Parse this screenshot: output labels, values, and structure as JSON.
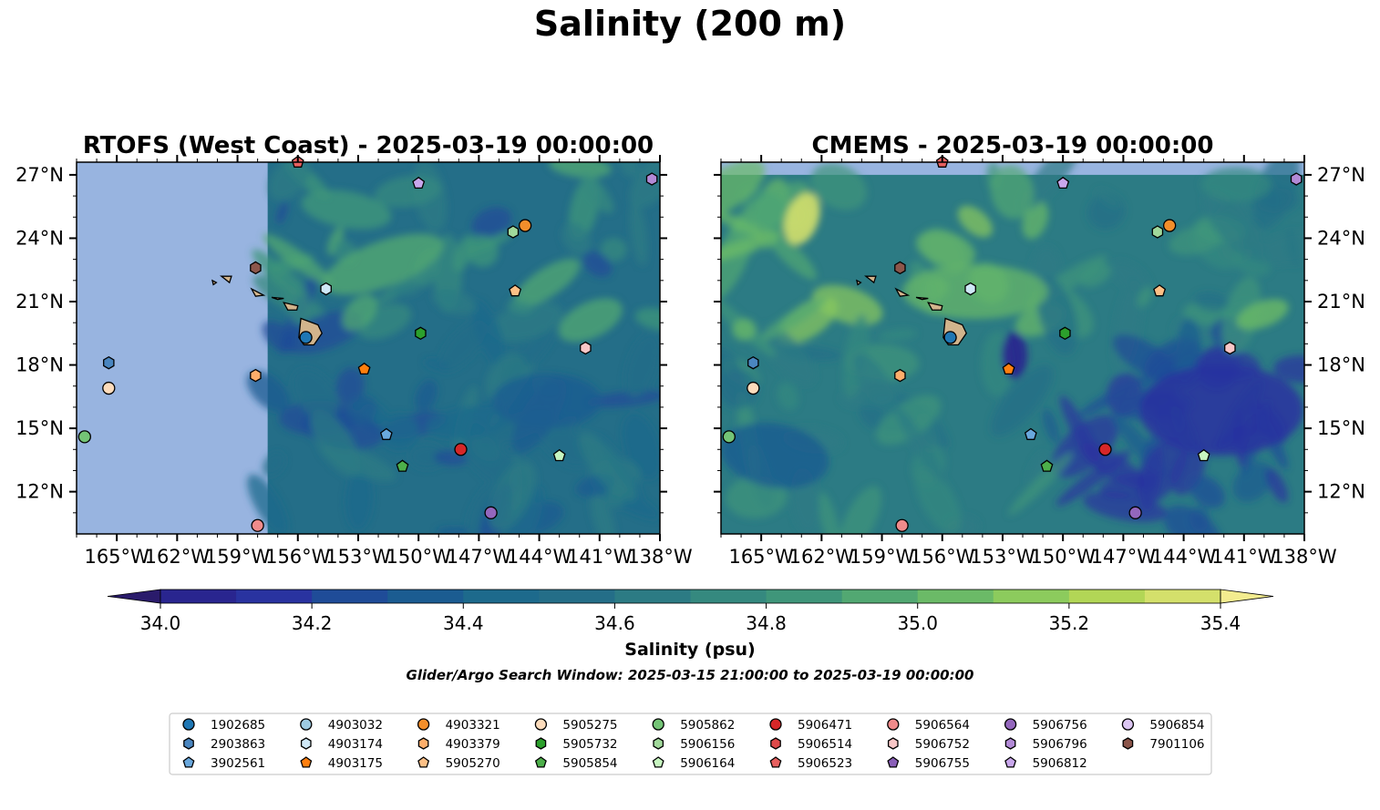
{
  "figure": {
    "title": "Salinity (200 m)",
    "search_window": "Glider/Argo Search Window: 2025-03-15 21:00:00 to 2025-03-19 00:00:00"
  },
  "panels": [
    {
      "id": "left",
      "title": "RTOFS (West Coast) - 2025-03-19 00:00:00",
      "model_data_from_lon": -157.5,
      "lat_ticks_side": "left"
    },
    {
      "id": "right",
      "title": "CMEMS - 2025-03-19 00:00:00",
      "model_data_to_lat": 27.0,
      "lat_ticks_side": "right"
    }
  ],
  "map_extent": {
    "lon_min": -167,
    "lon_max": -138,
    "lat_min": 10,
    "lat_max": 27.6
  },
  "lon_ticks": [
    {
      "v": -165,
      "label": "165°W"
    },
    {
      "v": -162,
      "label": "162°W"
    },
    {
      "v": -159,
      "label": "159°W"
    },
    {
      "v": -156,
      "label": "156°W"
    },
    {
      "v": -153,
      "label": "153°W"
    },
    {
      "v": -150,
      "label": "150°W"
    },
    {
      "v": -147,
      "label": "147°W"
    },
    {
      "v": -144,
      "label": "144°W"
    },
    {
      "v": -141,
      "label": "141°W"
    },
    {
      "v": -138,
      "label": "138°W"
    }
  ],
  "lat_ticks": [
    {
      "v": 12,
      "label": "12°N"
    },
    {
      "v": 15,
      "label": "15°N"
    },
    {
      "v": 18,
      "label": "18°N"
    },
    {
      "v": 21,
      "label": "21°N"
    },
    {
      "v": 24,
      "label": "24°N"
    },
    {
      "v": 27,
      "label": "27°N"
    }
  ],
  "colorbar": {
    "label": "Salinity (psu)",
    "min": 34.0,
    "max": 35.4,
    "step": 0.1,
    "extend": "both",
    "ticks": [
      {
        "v": 34.0,
        "label": "34.0"
      },
      {
        "v": 34.2,
        "label": "34.2"
      },
      {
        "v": 34.4,
        "label": "34.4"
      },
      {
        "v": 34.6,
        "label": "34.6"
      },
      {
        "v": 34.8,
        "label": "34.8"
      },
      {
        "v": 35.0,
        "label": "35.0"
      },
      {
        "v": 35.2,
        "label": "35.2"
      },
      {
        "v": 35.4,
        "label": "35.4"
      }
    ],
    "colors": [
      "#2a1b6b",
      "#29258f",
      "#2933a0",
      "#1f4c98",
      "#1b5c91",
      "#1d6a8c",
      "#246e88",
      "#2c7b84",
      "#35897f",
      "#3f967a",
      "#52a872",
      "#6bba67",
      "#8ccb5d",
      "#b2d656",
      "#d4e06b",
      "#f3ec8f"
    ]
  },
  "colors": {
    "land": "#d2b48c",
    "nodata": "#98b4e0",
    "axis": "#000000"
  },
  "platforms": [
    {
      "id": "1902685",
      "marker": "circle",
      "color": "#1f77b4",
      "lon": -155.6,
      "lat": 19.3
    },
    {
      "id": "2903863",
      "marker": "hexagon",
      "color": "#4a86c0",
      "lon": -165.4,
      "lat": 18.1
    },
    {
      "id": "3902561",
      "marker": "pentagon",
      "color": "#6aa8dd",
      "lon": -151.6,
      "lat": 14.7
    },
    {
      "id": "4903032",
      "marker": "circle",
      "color": "#9ecae1",
      "lon": -999,
      "lat": -999
    },
    {
      "id": "4903174",
      "marker": "hexagon",
      "color": "#cfe8f7",
      "lon": -154.6,
      "lat": 21.6
    },
    {
      "id": "4903175",
      "marker": "pentagon",
      "color": "#ff7f0e",
      "lon": -152.7,
      "lat": 17.8
    },
    {
      "id": "4903321",
      "marker": "circle",
      "color": "#f28e2b",
      "lon": -144.7,
      "lat": 24.6
    },
    {
      "id": "4903379",
      "marker": "hexagon",
      "color": "#fdae6b",
      "lon": -158.1,
      "lat": 17.5
    },
    {
      "id": "5905270",
      "marker": "pentagon",
      "color": "#fdc086",
      "lon": -145.2,
      "lat": 21.5
    },
    {
      "id": "5905275",
      "marker": "circle",
      "color": "#fddcbc",
      "lon": -165.4,
      "lat": 16.9
    },
    {
      "id": "5905732",
      "marker": "hexagon",
      "color": "#2ca02c",
      "lon": -149.9,
      "lat": 19.5
    },
    {
      "id": "5905854",
      "marker": "pentagon",
      "color": "#4daf4a",
      "lon": -150.8,
      "lat": 13.2
    },
    {
      "id": "5905862",
      "marker": "circle",
      "color": "#74c476",
      "lon": -166.6,
      "lat": 14.6
    },
    {
      "id": "5906156",
      "marker": "hexagon",
      "color": "#a1d99b",
      "lon": -145.3,
      "lat": 24.3
    },
    {
      "id": "5906164",
      "marker": "pentagon",
      "color": "#c7f5c0",
      "lon": -143.0,
      "lat": 13.7
    },
    {
      "id": "5906471",
      "marker": "circle",
      "color": "#d62728",
      "lon": -147.9,
      "lat": 14.0
    },
    {
      "id": "5906514",
      "marker": "hexagon",
      "color": "#de4a4a",
      "lon": -999,
      "lat": -999
    },
    {
      "id": "5906523",
      "marker": "pentagon",
      "color": "#e8605f",
      "lon": -156.0,
      "lat": 27.6
    },
    {
      "id": "5906564",
      "marker": "circle",
      "color": "#f08b8b",
      "lon": -158.0,
      "lat": 10.4
    },
    {
      "id": "5906752",
      "marker": "hexagon",
      "color": "#f9c7c7",
      "lon": -141.7,
      "lat": 18.8
    },
    {
      "id": "5906755",
      "marker": "pentagon",
      "color": "#8a5fb8",
      "lon": -999,
      "lat": -999
    },
    {
      "id": "5906756",
      "marker": "circle",
      "color": "#9467bd",
      "lon": -146.4,
      "lat": 11.0
    },
    {
      "id": "5906796",
      "marker": "hexagon",
      "color": "#b28ad6",
      "lon": -138.4,
      "lat": 26.8
    },
    {
      "id": "5906812",
      "marker": "pentagon",
      "color": "#c9a7ec",
      "lon": -150.0,
      "lat": 26.6
    },
    {
      "id": "5906854",
      "marker": "circle",
      "color": "#dcc6f2",
      "lon": -999,
      "lat": -999
    },
    {
      "id": "7901106",
      "marker": "hexagon",
      "color": "#8c564b",
      "lon": -158.1,
      "lat": 22.6
    }
  ],
  "legend_columns": 9
}
